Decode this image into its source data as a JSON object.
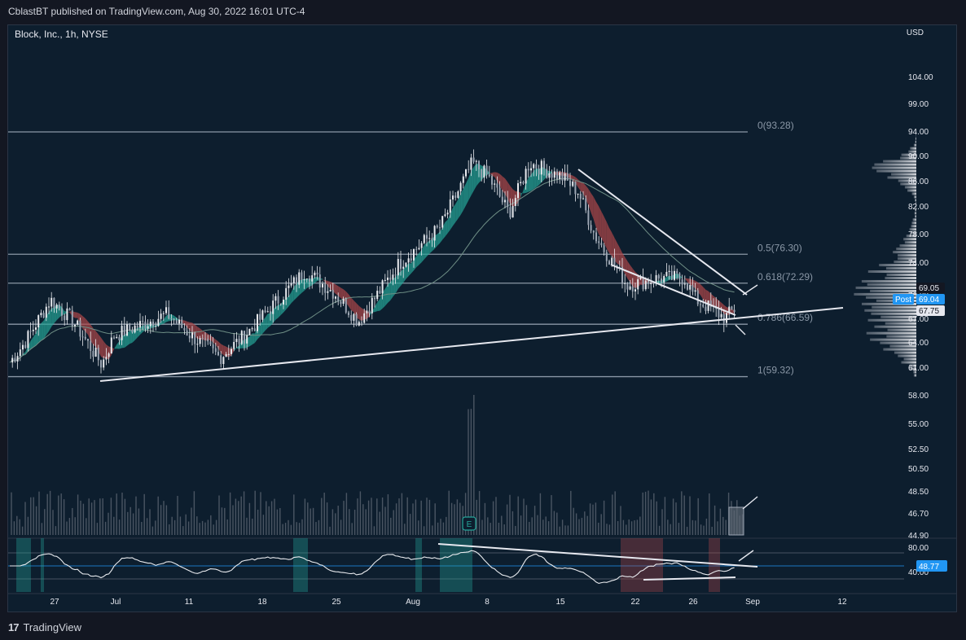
{
  "header": {
    "text": "CblastBT published on TradingView.com, Aug 30, 2022 16:01 UTC-4"
  },
  "footer": {
    "logo": "17",
    "brand": "TradingView"
  },
  "chart": {
    "symbol": "Block, Inc., 1h, NYSE",
    "currency": "USD"
  },
  "chart_data": {
    "type": "line",
    "title": "Block, Inc., 1h, NYSE",
    "price_axis_labels": [
      "104.00",
      "99.00",
      "94.00",
      "90.00",
      "86.00",
      "82.00",
      "78.00",
      "74.00",
      "70.00",
      "67.00",
      "64.00",
      "61.00",
      "58.00",
      "55.00",
      "52.50",
      "50.50",
      "48.50",
      "46.70",
      "44.90"
    ],
    "oscillator_axis_labels": [
      "80.00",
      "40.00"
    ],
    "x_tick_labels": [
      "27",
      "Jul",
      "11",
      "18",
      "25",
      "Aug",
      "8",
      "15",
      "22",
      "26",
      "Sep",
      "12"
    ],
    "fib_levels": [
      {
        "label": "0(93.28)",
        "value": 93.28
      },
      {
        "label": "0.5(76.30)",
        "value": 76.3
      },
      {
        "label": "0.618(72.29)",
        "value": 72.29
      },
      {
        "label": "0.786(66.59)",
        "value": 66.59
      },
      {
        "label": "1(59.32)",
        "value": 59.32
      }
    ],
    "price_path_keyframes": [
      {
        "t": "Jun 23",
        "price": 61
      },
      {
        "t": "Jun 24",
        "price": 64
      },
      {
        "t": "Jun 27",
        "price": 70
      },
      {
        "t": "Jun 28",
        "price": 67
      },
      {
        "t": "Jun 30",
        "price": 61
      },
      {
        "t": "Jul 5",
        "price": 65
      },
      {
        "t": "Jul 8",
        "price": 68
      },
      {
        "t": "Jul 12",
        "price": 65
      },
      {
        "t": "Jul 14",
        "price": 62
      },
      {
        "t": "Jul 18",
        "price": 65
      },
      {
        "t": "Jul 21",
        "price": 74
      },
      {
        "t": "Jul 25",
        "price": 71
      },
      {
        "t": "Jul 26",
        "price": 67
      },
      {
        "t": "Aug 1",
        "price": 75
      },
      {
        "t": "Aug 3",
        "price": 80
      },
      {
        "t": "Aug 5",
        "price": 89
      },
      {
        "t": "Aug 8",
        "price": 87
      },
      {
        "t": "Aug 9",
        "price": 82
      },
      {
        "t": "Aug 11",
        "price": 89
      },
      {
        "t": "Aug 15",
        "price": 87
      },
      {
        "t": "Aug 17",
        "price": 85
      },
      {
        "t": "Aug 19",
        "price": 79
      },
      {
        "t": "Aug 22",
        "price": 72
      },
      {
        "t": "Aug 24",
        "price": 73
      },
      {
        "t": "Aug 25",
        "price": 73
      },
      {
        "t": "Aug 26",
        "price": 70
      },
      {
        "t": "Aug 29",
        "price": 67.5
      },
      {
        "t": "Aug 30",
        "price": 69
      }
    ],
    "last_price": "69.04",
    "price_marks": [
      "69.05",
      "67.75"
    ],
    "post_label": "Post",
    "oscillator_last": "48.77",
    "earnings_marker": "E",
    "grid": false
  },
  "colors": {
    "background": "#0d1e2e",
    "page": "#131722",
    "bull": "#26a69a",
    "bear": "#b2474a",
    "text": "#d1d4dc",
    "fib": "#8a97a6",
    "trendline": "#e6e8ef",
    "blue_tag": "#2196f3"
  }
}
